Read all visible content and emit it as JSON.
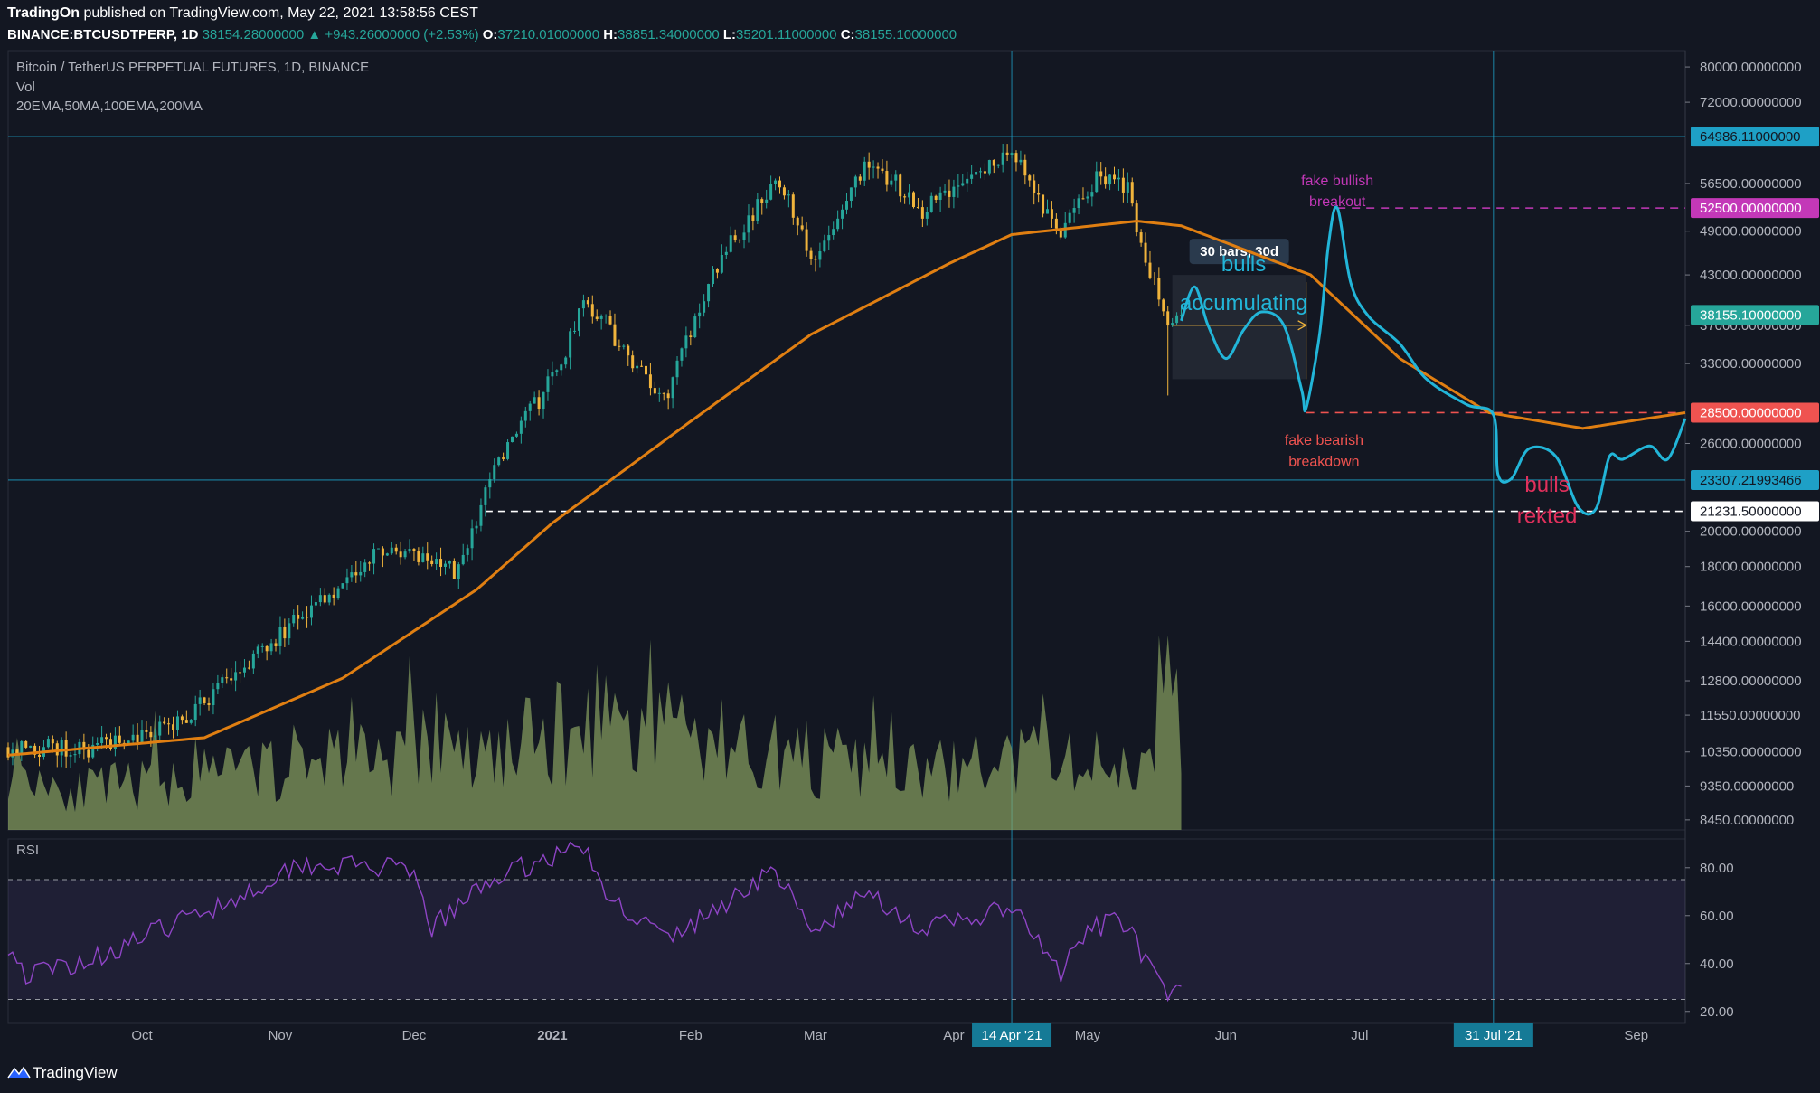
{
  "header": {
    "author": "TradingOn",
    "published_text": "published on TradingView.com, May 22, 2021 13:58:56 CEST",
    "symbol": "BINANCE:BTCUSDTPERP, 1D",
    "last": "38154.28000000",
    "change": "+943.26000000 (+2.53%)",
    "open_label": "O:",
    "open": "37210.01000000",
    "high_label": "H:",
    "high": "38851.34000000",
    "low_label": "L:",
    "low": "35201.11000000",
    "close_label": "C:",
    "close": "38155.10000000"
  },
  "legend": {
    "instrument": "Bitcoin / TetherUS PERPETUAL FUTURES, 1D, BINANCE",
    "volume": "Vol",
    "mas": "20EMA,50MA,100EMA,200MA",
    "rsi": "RSI"
  },
  "footer": {
    "brand": "TradingView"
  },
  "colors": {
    "background": "#131722",
    "up": "#26a69a",
    "down": "#f0b43c",
    "ema": "#e07f12",
    "projection": "#22b5d8",
    "rsi": "#8e44c5",
    "red_line": "#ef5350",
    "magenta": "#c338b8"
  },
  "chart_data": {
    "type": "candlestick",
    "y_scale": "log",
    "price_axis": {
      "ticks": [
        "80000.00000000",
        "72000.00000000",
        "56500.00000000",
        "49000.00000000",
        "43000.00000000",
        "37000.00000000",
        "33000.00000000",
        "26000.00000000",
        "20000.00000000",
        "18000.00000000",
        "16000.00000000",
        "14400.00000000",
        "12800.00000000",
        "11550.00000000",
        "10350.00000000",
        "9350.00000000",
        "8450.00000000"
      ],
      "tick_values": [
        80000,
        72000,
        56500,
        49000,
        43000,
        37000,
        33000,
        26000,
        20000,
        18000,
        16000,
        14400,
        12800,
        11550,
        10350,
        9350,
        8450
      ],
      "ylim": [
        8200,
        84000
      ]
    },
    "time_axis": {
      "labels": [
        "Oct",
        "Nov",
        "Dec",
        "2021",
        "Feb",
        "Mar",
        "Apr",
        "May",
        "Jun",
        "Jul",
        "Sep"
      ],
      "dates": [
        "2020-10-01",
        "2020-11-01",
        "2020-12-01",
        "2021-01-01",
        "2021-02-01",
        "2021-03-01",
        "2021-04-01",
        "2021-05-01",
        "2021-06-01",
        "2021-07-01",
        "2021-09-01"
      ],
      "range": [
        "2020-09-01",
        "2021-09-12"
      ]
    },
    "anchors": [
      [
        "2020-09-01",
        10500
      ],
      [
        "2020-09-20",
        10450
      ],
      [
        "2020-10-10",
        11300
      ],
      [
        "2020-10-21",
        12900
      ],
      [
        "2020-11-05",
        15500
      ],
      [
        "2020-11-25",
        19000
      ],
      [
        "2020-12-11",
        17700
      ],
      [
        "2020-12-18",
        23500
      ],
      [
        "2021-01-03",
        33000
      ],
      [
        "2021-01-08",
        40500
      ],
      [
        "2021-01-22",
        31500
      ],
      [
        "2021-01-27",
        30500
      ],
      [
        "2021-02-08",
        46000
      ],
      [
        "2021-02-21",
        57000
      ],
      [
        "2021-02-28",
        45000
      ],
      [
        "2021-03-13",
        61000
      ],
      [
        "2021-03-25",
        52000
      ],
      [
        "2021-04-14",
        63500
      ],
      [
        "2021-04-18",
        56000
      ],
      [
        "2021-04-25",
        49000
      ],
      [
        "2021-05-03",
        57500
      ],
      [
        "2021-05-10",
        56500
      ],
      [
        "2021-05-12",
        50000
      ],
      [
        "2021-05-19",
        37000
      ],
      [
        "2021-05-22",
        38155
      ]
    ],
    "ema_anchors": [
      [
        "2020-09-01",
        10250
      ],
      [
        "2020-10-15",
        10800
      ],
      [
        "2020-11-15",
        12900
      ],
      [
        "2020-12-15",
        16800
      ],
      [
        "2021-01-01",
        20500
      ],
      [
        "2021-01-31",
        27500
      ],
      [
        "2021-02-28",
        36000
      ],
      [
        "2021-03-31",
        44500
      ],
      [
        "2021-04-14",
        48500
      ],
      [
        "2021-05-12",
        50500
      ],
      [
        "2021-05-22",
        49800
      ],
      [
        "2021-06-20",
        43000
      ],
      [
        "2021-07-10",
        33500
      ],
      [
        "2021-07-30",
        28500
      ],
      [
        "2021-08-20",
        27200
      ],
      [
        "2021-09-12",
        28500
      ]
    ],
    "projection_path": [
      [
        "2021-05-22",
        37500
      ],
      [
        "2021-05-25",
        41500
      ],
      [
        "2021-05-28",
        37000
      ],
      [
        "2021-06-01",
        33500
      ],
      [
        "2021-06-05",
        36500
      ],
      [
        "2021-06-09",
        38500
      ],
      [
        "2021-06-14",
        37000
      ],
      [
        "2021-06-18",
        30500
      ],
      [
        "2021-06-19",
        28900
      ],
      [
        "2021-06-22",
        36000
      ],
      [
        "2021-06-24",
        47000
      ],
      [
        "2021-06-26",
        52500
      ],
      [
        "2021-06-29",
        42000
      ],
      [
        "2021-07-03",
        38000
      ],
      [
        "2021-07-10",
        35000
      ],
      [
        "2021-07-16",
        31500
      ],
      [
        "2021-07-25",
        29200
      ],
      [
        "2021-07-31",
        28300
      ],
      [
        "2021-08-01",
        23700
      ],
      [
        "2021-08-04",
        23400
      ],
      [
        "2021-08-08",
        25600
      ],
      [
        "2021-08-14",
        25000
      ],
      [
        "2021-08-19",
        21500
      ],
      [
        "2021-08-23",
        21400
      ],
      [
        "2021-08-26",
        25000
      ],
      [
        "2021-08-29",
        24800
      ],
      [
        "2021-09-04",
        25800
      ],
      [
        "2021-09-08",
        24800
      ],
      [
        "2021-09-12",
        28000
      ]
    ],
    "levels": [
      {
        "value": 64986.11,
        "label": "64986.11000000",
        "style": "solid",
        "color": "#1ea0c6",
        "from": "2020-09-01"
      },
      {
        "value": 52500,
        "label": "52500.00000000",
        "style": "dashed",
        "color": "#c338b8",
        "from": "2021-06-26"
      },
      {
        "value": 38155.1,
        "label": "38155.10000000",
        "style": "none",
        "color": "#26a69a",
        "from": "2021-05-22"
      },
      {
        "value": 28500,
        "label": "28500.00000000",
        "style": "dashed",
        "color": "#ef5350",
        "from": "2021-06-19"
      },
      {
        "value": 23307.21993466,
        "label": "23307.21993466",
        "style": "solid",
        "color": "#1ea0c6",
        "from": "2020-09-01"
      },
      {
        "value": 21231.5,
        "label": "21231.50000000",
        "style": "dashed",
        "color": "#ffffff",
        "from": "2020-12-17"
      }
    ],
    "vertical_lines": [
      {
        "date": "2021-04-14",
        "label": "14 Apr '21"
      },
      {
        "date": "2021-07-31",
        "label": "31 Jul '21"
      }
    ],
    "measure_box": {
      "from": "2021-05-20",
      "to": "2021-06-19",
      "top": 43000,
      "bottom": 31500,
      "label": "30 bars, 30d"
    },
    "annotations": [
      {
        "text": "bulls",
        "date": "2021-06-05",
        "value": 43500,
        "color": "#22b5d8"
      },
      {
        "text": "accumulating",
        "date": "2021-06-05",
        "value": 38700,
        "color": "#22b5d8"
      },
      {
        "text": "fake bullish",
        "date": "2021-06-26",
        "value": 56200,
        "color": "#c338b8"
      },
      {
        "text": "breakout",
        "date": "2021-06-26",
        "value": 52800,
        "color": "#c338b8"
      },
      {
        "text": "fake bearish",
        "date": "2021-06-23",
        "value": 25900,
        "color": "#ef5350"
      },
      {
        "text": "breakdown",
        "date": "2021-06-23",
        "value": 24300,
        "color": "#ef5350"
      },
      {
        "text": "bulls",
        "date": "2021-08-12",
        "value": 22500,
        "color": "#e0305c"
      },
      {
        "text": "rekted",
        "date": "2021-08-12",
        "value": 20500,
        "color": "#e0305c"
      }
    ],
    "volume": {
      "anchors": [
        [
          "2020-09-01",
          0.45
        ],
        [
          "2020-09-15",
          0.25
        ],
        [
          "2020-10-20",
          0.35
        ],
        [
          "2020-11-15",
          0.5
        ],
        [
          "2020-12-15",
          0.45
        ],
        [
          "2021-01-11",
          0.7
        ],
        [
          "2021-02-20",
          0.5
        ],
        [
          "2021-03-20",
          0.35
        ],
        [
          "2021-04-18",
          0.45
        ],
        [
          "2021-05-12",
          0.4
        ],
        [
          "2021-05-19",
          1.0
        ],
        [
          "2021-05-22",
          0.6
        ]
      ]
    },
    "rsi": {
      "axis_ticks": [
        "80.00",
        "60.00",
        "40.00",
        "20.00"
      ],
      "tick_values": [
        80,
        60,
        40,
        20
      ],
      "overbought": 75,
      "oversold": 25,
      "ylim": [
        15,
        92
      ],
      "anchors": [
        [
          "2020-09-01",
          48
        ],
        [
          "2020-09-05",
          35
        ],
        [
          "2020-09-20",
          42
        ],
        [
          "2020-10-10",
          58
        ],
        [
          "2020-10-25",
          70
        ],
        [
          "2020-11-05",
          82
        ],
        [
          "2020-11-25",
          80
        ],
        [
          "2020-12-01",
          76
        ],
        [
          "2020-12-05",
          55
        ],
        [
          "2020-12-10",
          62
        ],
        [
          "2020-12-18",
          75
        ],
        [
          "2021-01-03",
          86
        ],
        [
          "2021-01-08",
          90
        ],
        [
          "2021-01-12",
          70
        ],
        [
          "2021-01-27",
          50
        ],
        [
          "2021-02-08",
          64
        ],
        [
          "2021-02-18",
          78
        ],
        [
          "2021-02-21",
          76
        ],
        [
          "2021-02-28",
          52
        ],
        [
          "2021-03-13",
          70
        ],
        [
          "2021-03-25",
          54
        ],
        [
          "2021-04-14",
          63
        ],
        [
          "2021-04-25",
          36
        ],
        [
          "2021-05-02",
          55
        ],
        [
          "2021-05-10",
          58
        ],
        [
          "2021-05-14",
          40
        ],
        [
          "2021-05-19",
          25
        ],
        [
          "2021-05-22",
          30
        ]
      ]
    }
  }
}
